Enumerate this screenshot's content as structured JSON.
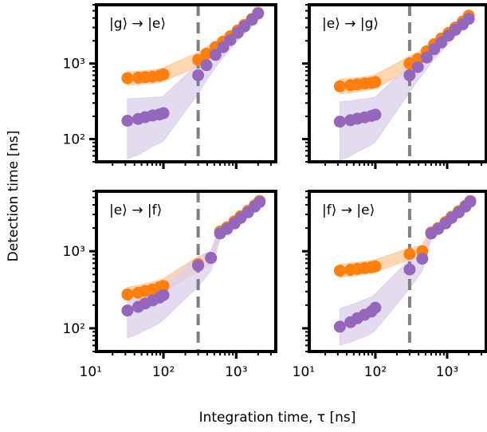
{
  "colors": {
    "orange": "#ff7f0e",
    "purple": "#9467bd",
    "orange_band": "#fdc998",
    "purple_band": "#dccfeb",
    "vline": "#808080"
  },
  "chart_data": {
    "type": "scatter",
    "layout": "2x2 grid of panels, shared log axes",
    "xlabel": "Integration time, τ [ns]",
    "ylabel": "Detection time [ns]",
    "xscale": "log",
    "yscale": "log",
    "xlim": [
      12,
      3500
    ],
    "ylim": [
      50,
      6000
    ],
    "x_ticks": [
      {
        "value": 10,
        "label": "10¹"
      },
      {
        "value": 100,
        "label": "10²"
      },
      {
        "value": 1000,
        "label": "10³"
      }
    ],
    "y_ticks": [
      {
        "value": 100,
        "label": "10²"
      },
      {
        "value": 1000,
        "label": "10³"
      }
    ],
    "vline_x": 300,
    "grid": false,
    "panels": [
      {
        "title": "|g⟩ → |e⟩",
        "series": [
          {
            "color": "orange",
            "x": [
              32,
              45,
              56,
              71,
              88,
              100,
              300,
              390,
              520,
              660,
              830,
              1050,
              1300,
              1650,
              2000
            ],
            "y": [
              640,
              650,
              660,
              670,
              690,
              720,
              1120,
              1350,
              1650,
              1950,
              2300,
              2750,
              3250,
              3900,
              4700
            ],
            "band_lo": [
              520,
              530,
              540,
              550,
              560,
              590,
              900,
              1120,
              1400,
              1700,
              2000,
              2400,
              2850,
              3400,
              4100
            ],
            "band_hi": [
              780,
              790,
              800,
              820,
              850,
              880,
              1400,
              1650,
              1950,
              2250,
              2650,
              3100,
              3650,
              4300,
              5100
            ]
          },
          {
            "color": "purple",
            "x": [
              32,
              45,
              56,
              71,
              88,
              100,
              300,
              390,
              520,
              660,
              830,
              1050,
              1300,
              1650,
              2000
            ],
            "y": [
              175,
              185,
              195,
              205,
              212,
              220,
              700,
              950,
              1300,
              1650,
              2050,
              2550,
              3100,
              3800,
              4600
            ],
            "band_lo": [
              55,
              62,
              70,
              80,
              88,
              95,
              400,
              600,
              900,
              1200,
              1550,
              2000,
              2500,
              3100,
              3900
            ],
            "band_hi": [
              340,
              345,
              350,
              355,
              360,
              370,
              1000,
              1250,
              1600,
              1950,
              2350,
              2850,
              3400,
              4100,
              4900
            ]
          }
        ]
      },
      {
        "title": "|e⟩ → |g⟩",
        "series": [
          {
            "color": "orange",
            "x": [
              32,
              45,
              56,
              71,
              88,
              100,
              300,
              390,
              520,
              660,
              830,
              1050,
              1300,
              1650,
              2000
            ],
            "y": [
              500,
              515,
              530,
              545,
              555,
              570,
              1000,
              1150,
              1450,
              1800,
              2150,
              2550,
              3000,
              3600,
              4300
            ],
            "band_lo": [
              400,
              410,
              425,
              440,
              455,
              470,
              820,
              960,
              1250,
              1550,
              1900,
              2250,
              2700,
              3250,
              3900
            ],
            "band_hi": [
              620,
              640,
              650,
              670,
              690,
              710,
              1250,
              1400,
              1750,
              2100,
              2450,
              2900,
              3400,
              4000,
              4800
            ]
          },
          {
            "color": "purple",
            "x": [
              32,
              45,
              56,
              71,
              88,
              100,
              300,
              390,
              520,
              660,
              830,
              1050,
              1300,
              1650,
              2000
            ],
            "y": [
              170,
              178,
              186,
              194,
              202,
              210,
              700,
              900,
              1200,
              1550,
              1900,
              2350,
              2800,
              3300,
              3900
            ],
            "band_lo": [
              52,
              60,
              68,
              76,
              84,
              92,
              420,
              600,
              850,
              1150,
              1450,
              1850,
              2300,
              2800,
              3400
            ],
            "band_hi": [
              310,
              320,
              330,
              340,
              350,
              360,
              950,
              1150,
              1500,
              1850,
              2250,
              2700,
              3200,
              3750,
              4400
            ]
          }
        ]
      },
      {
        "title": "|e⟩ → |f⟩",
        "series": [
          {
            "color": "orange",
            "x": [
              32,
              45,
              56,
              71,
              88,
              100,
              300,
              450,
              600,
              750,
              950,
              1150,
              1450,
              1800,
              2100
            ],
            "y": [
              275,
              290,
              305,
              320,
              340,
              355,
              680,
              820,
              1800,
              2050,
              2450,
              2850,
              3350,
              3950,
              4500
            ],
            "band_lo": [
              220,
              235,
              250,
              265,
              280,
              295,
              550,
              700,
              1550,
              1800,
              2150,
              2550,
              3000,
              3550,
              4100
            ],
            "band_hi": [
              340,
              360,
              380,
              400,
              420,
              440,
              850,
              1000,
              2100,
              2350,
              2750,
              3200,
              3700,
              4350,
              4900
            ]
          },
          {
            "color": "purple",
            "x": [
              32,
              45,
              56,
              71,
              88,
              100,
              300,
              450,
              600,
              750,
              950,
              1150,
              1450,
              1800,
              2100
            ],
            "y": [
              170,
              190,
              210,
              230,
              250,
              270,
              650,
              820,
              1700,
              1950,
              2300,
              2700,
              3200,
              3800,
              4350
            ],
            "band_lo": [
              75,
              85,
              95,
              105,
              118,
              130,
              350,
              560,
              1450,
              1700,
              2050,
              2450,
              2900,
              3450,
              4000
            ],
            "band_hi": [
              240,
              260,
              280,
              300,
              330,
              360,
              850,
              1000,
              1950,
              2250,
              2600,
              3000,
              3500,
              4100,
              4700
            ]
          }
        ]
      },
      {
        "title": "|f⟩ → |e⟩",
        "series": [
          {
            "color": "orange",
            "x": [
              32,
              45,
              56,
              71,
              88,
              100,
              300,
              450,
              600,
              750,
              950,
              1150,
              1450,
              1800,
              2100
            ],
            "y": [
              560,
              575,
              590,
              605,
              620,
              635,
              920,
              1000,
              1750,
              2000,
              2400,
              2800,
              3300,
              3900,
              4500
            ],
            "band_lo": [
              460,
              475,
              490,
              505,
              520,
              535,
              780,
              860,
              1500,
              1750,
              2100,
              2500,
              2950,
              3500,
              4100
            ],
            "band_hi": [
              680,
              700,
              720,
              740,
              760,
              780,
              1100,
              1200,
              2050,
              2300,
              2700,
              3150,
              3650,
              4300,
              4900
            ]
          },
          {
            "color": "purple",
            "x": [
              32,
              45,
              56,
              71,
              88,
              100,
              300,
              450,
              600,
              750,
              950,
              1150,
              1450,
              1800,
              2100
            ],
            "y": [
              105,
              120,
              135,
              150,
              165,
              185,
              580,
              800,
              1700,
              1950,
              2300,
              2700,
              3200,
              3800,
              4400
            ],
            "band_lo": [
              60,
              66,
              72,
              78,
              86,
              95,
              330,
              560,
              1450,
              1700,
              2050,
              2450,
              2900,
              3450,
              4050
            ],
            "band_hi": [
              180,
              200,
              215,
              235,
              255,
              280,
              780,
              1000,
              1950,
              2250,
              2600,
              3000,
              3500,
              4100,
              4700
            ]
          }
        ]
      }
    ]
  }
}
